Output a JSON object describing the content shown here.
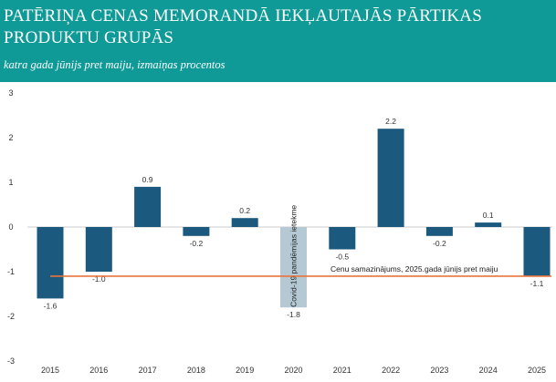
{
  "header": {
    "title": "PATĒRIŅA CENAS MEMORANDĀ IEKĻAUTAJĀS PĀRTIKAS PRODUKTU GRUPĀS",
    "subtitle": "katra gada jūnijs pret maiju, izmaiņas procentos",
    "background": "#0f9a97"
  },
  "chart_data": {
    "type": "bar",
    "categories": [
      "2015",
      "2016",
      "2017",
      "2018",
      "2019",
      "2020",
      "2021",
      "2022",
      "2023",
      "2024",
      "2025"
    ],
    "values": [
      -1.6,
      -1.0,
      0.9,
      -0.2,
      0.2,
      -1.8,
      -0.5,
      2.2,
      -0.2,
      0.1,
      -1.1
    ],
    "value_labels": [
      "-1.6",
      "-1.0",
      "0.9",
      "-0.2",
      "0.2",
      "-1.8",
      "-0.5",
      "2.2",
      "-0.2",
      "0.1",
      "-1.1"
    ],
    "ylim": [
      -3,
      3
    ],
    "yticks": [
      "3",
      "2",
      "1",
      "0",
      "-1",
      "-2",
      "-3"
    ],
    "grid": false,
    "colors": {
      "bar": "#1b5a7e",
      "highlight_bar": "#b4c9d4",
      "reference_line": "#e8743b",
      "zero_line": "#cccccc"
    },
    "highlight": {
      "category": "2020",
      "label": "Covid-19 pandēmijas ietekme"
    },
    "reference_line": {
      "value": -1.1,
      "label": "Cenu samazinājums, 2025.gada jūnijs pret maiju"
    }
  }
}
